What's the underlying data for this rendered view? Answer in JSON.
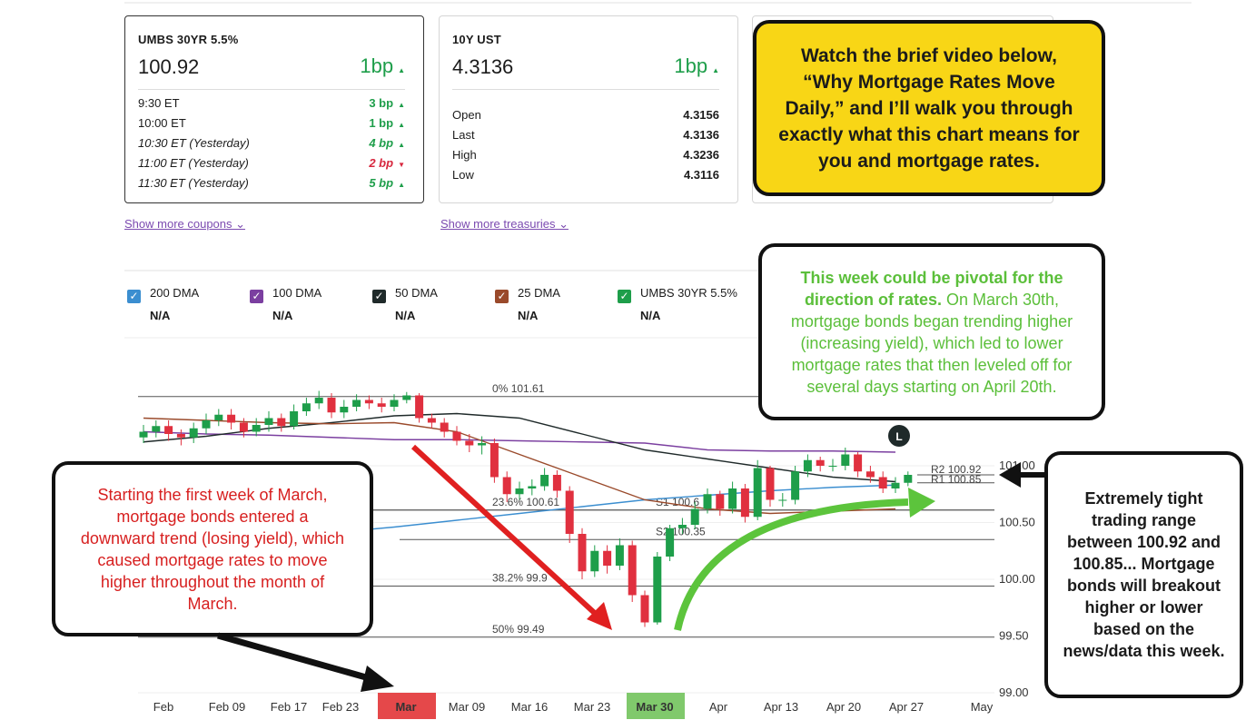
{
  "cards": {
    "umbs": {
      "title": "UMBS 30YR 5.5%",
      "price": "100.92",
      "change": "1bp",
      "direction": "up",
      "rows": [
        {
          "time": "9:30 ET",
          "change": "3 bp",
          "direction": "up"
        },
        {
          "time": "10:00 ET",
          "change": "1 bp",
          "direction": "up"
        },
        {
          "time": "10:30 ET (Yesterday)",
          "change": "4 bp",
          "direction": "up"
        },
        {
          "time": "11:00 ET (Yesterday)",
          "change": "2 bp",
          "direction": "down"
        },
        {
          "time": "11:30 ET (Yesterday)",
          "change": "5 bp",
          "direction": "up"
        }
      ],
      "link": "Show more coupons"
    },
    "treasury": {
      "title": "10Y UST",
      "price": "4.3136",
      "change": "1bp",
      "direction": "up",
      "rows": [
        {
          "label": "Open",
          "value": "4.3156"
        },
        {
          "label": "Last",
          "value": "4.3136"
        },
        {
          "label": "High",
          "value": "4.3236"
        },
        {
          "label": "Low",
          "value": "4.3116"
        }
      ],
      "link": "Show more treasuries"
    }
  },
  "callouts": {
    "video": "Watch the brief video below, “Why Mortgage Rates Move Daily,” and I’ll walk you through exactly what this chart means for you and mortgage rates.",
    "pivotal_bold": "This week could be pivotal for the direction of rates.",
    "pivotal": "On March 30th, mortgage bonds began trending higher (increasing yield), which led to lower mortgage rates that then leveled off for several days starting on April 20th.",
    "march": "Starting the first week of March, mortgage bonds entered a downward trend (losing yield), which caused mortgage rates to move higher throughout the month of March.",
    "range": "Extremely tight trading range between 100.92 and 100.85... Mortgage bonds will breakout higher or lower based on the news/data this week."
  },
  "chart_data": {
    "type": "candlestick",
    "up_color": "#1e9e4a",
    "down_color": "#e0303f",
    "open": [
      101.25,
      101.3,
      101.35,
      101.28,
      101.25,
      101.33,
      101.4,
      101.45,
      101.38,
      101.3,
      101.36,
      101.42,
      101.35,
      101.48,
      101.55,
      101.6,
      101.47,
      101.52,
      101.58,
      101.55,
      101.52,
      101.58,
      101.62,
      101.42,
      101.38,
      101.3,
      101.22,
      101.18,
      101.2,
      100.9,
      100.75,
      100.8,
      100.82,
      100.92,
      100.78,
      100.4,
      100.07,
      100.25,
      100.12,
      100.3,
      99.86,
      99.62,
      100.2,
      100.45,
      100.48,
      100.62,
      100.75,
      100.62,
      100.8,
      100.55,
      100.98,
      100.7,
      100.7,
      100.95,
      101.05,
      101.0,
      101.0,
      101.1,
      100.95,
      100.9,
      100.8,
      100.85
    ],
    "high": [
      101.36,
      101.4,
      101.4,
      101.32,
      101.38,
      101.46,
      101.5,
      101.5,
      101.42,
      101.42,
      101.48,
      101.46,
      101.54,
      101.6,
      101.66,
      101.64,
      101.58,
      101.63,
      101.62,
      101.6,
      101.63,
      101.65,
      101.64,
      101.46,
      101.42,
      101.35,
      101.28,
      101.26,
      101.24,
      100.95,
      100.86,
      100.88,
      100.98,
      100.96,
      100.82,
      100.45,
      100.3,
      100.3,
      100.36,
      100.34,
      99.9,
      100.24,
      100.48,
      100.54,
      100.68,
      100.8,
      100.78,
      100.86,
      100.84,
      101.05,
      101.0,
      100.76,
      101.0,
      101.1,
      101.08,
      101.06,
      101.16,
      101.12,
      101.0,
      100.95,
      100.9,
      100.95
    ],
    "low": [
      101.2,
      101.25,
      101.22,
      101.18,
      101.2,
      101.28,
      101.35,
      101.32,
      101.25,
      101.26,
      101.3,
      101.3,
      101.32,
      101.44,
      101.5,
      101.42,
      101.42,
      101.48,
      101.5,
      101.47,
      101.48,
      101.55,
      101.38,
      101.33,
      101.25,
      101.18,
      101.12,
      101.1,
      100.85,
      100.68,
      100.7,
      100.74,
      100.78,
      100.72,
      100.32,
      100.0,
      100.02,
      100.05,
      100.08,
      99.8,
      99.58,
      99.6,
      100.16,
      100.4,
      100.44,
      100.58,
      100.56,
      100.58,
      100.5,
      100.52,
      100.64,
      100.64,
      100.66,
      100.9,
      100.95,
      100.95,
      100.96,
      100.9,
      100.85,
      100.76,
      100.76,
      100.82
    ],
    "close": [
      101.3,
      101.35,
      101.28,
      101.25,
      101.33,
      101.4,
      101.45,
      101.38,
      101.3,
      101.36,
      101.42,
      101.35,
      101.48,
      101.55,
      101.6,
      101.47,
      101.52,
      101.58,
      101.55,
      101.52,
      101.58,
      101.62,
      101.42,
      101.38,
      101.3,
      101.22,
      101.18,
      101.2,
      100.9,
      100.75,
      100.8,
      100.82,
      100.92,
      100.78,
      100.4,
      100.07,
      100.25,
      100.12,
      100.3,
      99.86,
      99.62,
      100.2,
      100.45,
      100.48,
      100.62,
      100.75,
      100.62,
      100.8,
      100.55,
      100.98,
      100.7,
      100.7,
      100.95,
      101.05,
      101.0,
      101.0,
      101.1,
      100.95,
      100.9,
      100.8,
      100.85,
      100.92
    ],
    "series": [
      {
        "name": "200 DMA",
        "latest": "N/A",
        "color": "#3b8ed0",
        "values": [
          null,
          null,
          null,
          100.41,
          100.46,
          100.52,
          100.58,
          100.64,
          100.7,
          100.74,
          100.78,
          100.81,
          100.83
        ]
      },
      {
        "name": "100 DMA",
        "latest": "N/A",
        "color": "#7b3fa0",
        "values": [
          101.3,
          101.28,
          101.27,
          101.25,
          101.23,
          101.23,
          101.22,
          101.21,
          101.2,
          101.14,
          101.13,
          101.13,
          101.12
        ]
      },
      {
        "name": "50 DMA",
        "latest": "N/A",
        "color": "#1f2a2a",
        "values": [
          101.21,
          101.26,
          101.33,
          101.38,
          101.44,
          101.46,
          101.42,
          101.28,
          101.14,
          101.06,
          100.98,
          100.9,
          100.86
        ]
      },
      {
        "name": "25 DMA",
        "latest": "N/A",
        "color": "#9a4a2b",
        "values": [
          101.42,
          101.4,
          101.38,
          101.37,
          101.38,
          101.3,
          101.1,
          100.9,
          100.7,
          100.62,
          100.58,
          100.6,
          100.62
        ]
      },
      {
        "name": "UMBS 30YR 5.5%",
        "latest": "N/A",
        "color": "#1e9e4a"
      }
    ],
    "levels": [
      {
        "name": "0%",
        "value": 101.61
      },
      {
        "name": "23.6%",
        "value": 100.61
      },
      {
        "name": "38.2%",
        "value": {
          "value": 99.94,
          "label": "99.9"
        }
      },
      {
        "name": "50%",
        "value": 99.49
      },
      {
        "name": "S1",
        "value": {
          "value": 100.61,
          "label": "100.6"
        }
      },
      {
        "name": "S2",
        "value": 100.35
      },
      {
        "name": "R2",
        "value": 100.92
      },
      {
        "name": "R1",
        "value": 100.85
      }
    ],
    "marker": "L",
    "x_labels": [
      "Feb",
      "Feb 09",
      "Feb 17",
      "Feb 23",
      {
        "label": "Mar",
        "highlight": "#e5484a"
      },
      "Mar 09",
      "Mar 16",
      "Mar 23",
      {
        "label": "Mar 30",
        "highlight": "#80c96c"
      },
      "Apr",
      "Apr 13",
      "Apr 20",
      "Apr 27",
      "May"
    ],
    "ylim": [
      99,
      102
    ],
    "yticks": [
      {
        "value": 99,
        "label": "99.00"
      },
      {
        "value": 99.5,
        "label": "99.50"
      },
      {
        "value": 100,
        "label": "100.00"
      },
      {
        "value": 100.5,
        "label": "100.50"
      },
      {
        "value": 101,
        "label": "101.00"
      }
    ],
    "grid": true
  }
}
